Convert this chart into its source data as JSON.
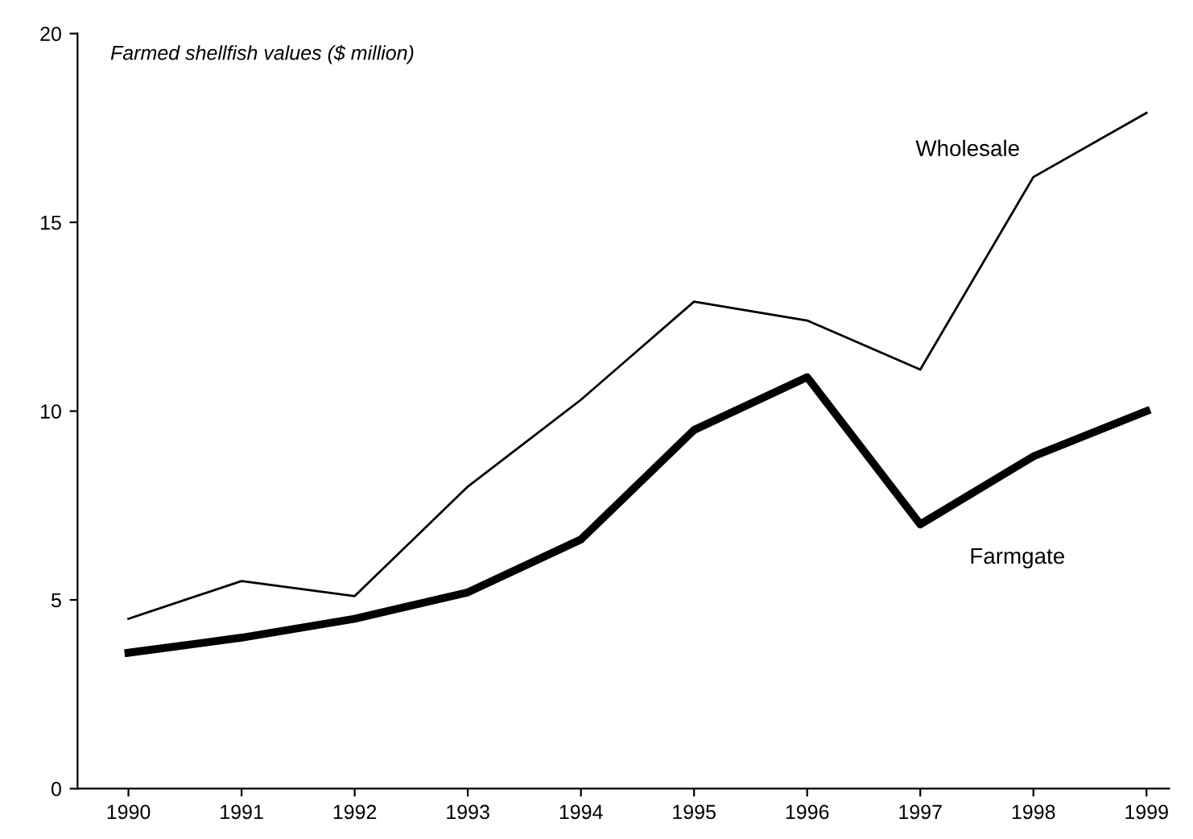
{
  "chart_data": {
    "type": "line",
    "title": "Farmed shellfish values ($ million)",
    "x": [
      1990,
      1991,
      1992,
      1993,
      1994,
      1995,
      1996,
      1997,
      1998,
      1999
    ],
    "series": [
      {
        "name": "Wholesale",
        "color": "#000000",
        "values": [
          4.5,
          5.5,
          5.1,
          8.0,
          10.3,
          12.9,
          12.4,
          11.1,
          16.2,
          17.9
        ]
      },
      {
        "name": "Farmgate",
        "color": "#000000",
        "values": [
          3.6,
          4.0,
          4.5,
          5.2,
          6.6,
          9.5,
          10.9,
          7.0,
          8.8,
          10.0
        ]
      }
    ],
    "xlim": [
      1989.55,
      1999.2
    ],
    "xticks": [
      1990,
      1991,
      1992,
      1993,
      1994,
      1995,
      1996,
      1997,
      1998,
      1999
    ],
    "ylim": [
      0,
      20
    ],
    "yticks": [
      0,
      5,
      10,
      15,
      20
    ],
    "grid": false,
    "legend": false,
    "marker": "none",
    "line_style": "solid"
  }
}
